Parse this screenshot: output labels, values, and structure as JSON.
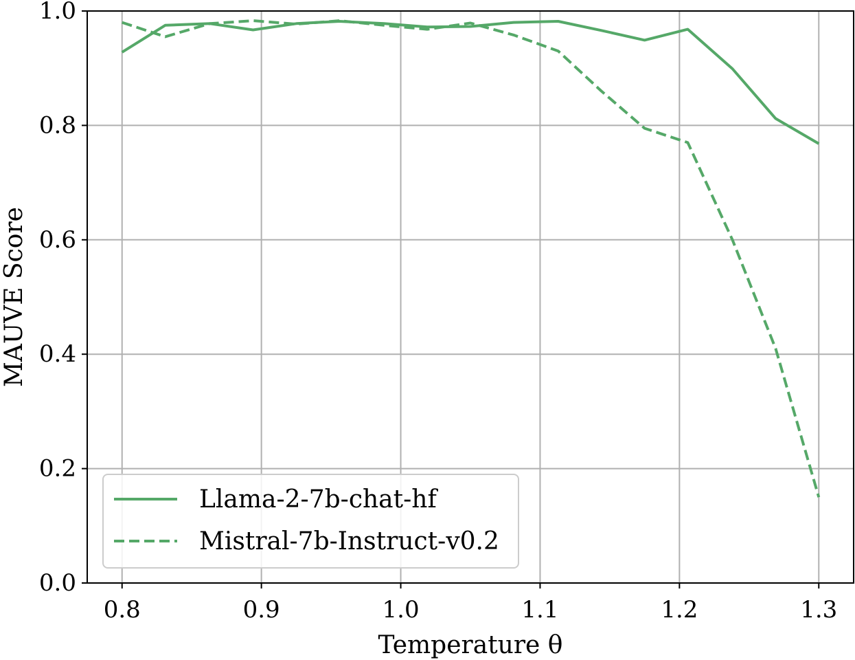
{
  "chart_data": {
    "type": "line",
    "title": "",
    "xlabel": "Temperature θ",
    "ylabel": "MAUVE Score",
    "xlim": [
      0.775,
      1.325
    ],
    "ylim": [
      0.0,
      1.0
    ],
    "xticks": [
      0.8,
      0.9,
      1.0,
      1.1,
      1.2,
      1.3
    ],
    "xtick_labels": [
      "0.8",
      "0.9",
      "1.0",
      "1.1",
      "1.2",
      "1.3"
    ],
    "yticks": [
      0.0,
      0.2,
      0.4,
      0.6,
      0.8,
      1.0
    ],
    "ytick_labels": [
      "0.0",
      "0.2",
      "0.4",
      "0.6",
      "0.8",
      "1.0"
    ],
    "grid": true,
    "legend_position": "bottom-left",
    "series": [
      {
        "name": "Llama-2-7b-chat-hf",
        "style": "solid",
        "color": "#55a868",
        "x": [
          0.8,
          0.831,
          0.863,
          0.894,
          0.925,
          0.956,
          0.988,
          1.019,
          1.05,
          1.081,
          1.113,
          1.144,
          1.175,
          1.206,
          1.238,
          1.269,
          1.3
        ],
        "y": [
          0.928,
          0.975,
          0.978,
          0.967,
          0.978,
          0.982,
          0.978,
          0.972,
          0.973,
          0.98,
          0.982,
          0.966,
          0.949,
          0.968,
          0.899,
          0.812,
          0.768
        ]
      },
      {
        "name": "Mistral-7b-Instruct-v0.2",
        "style": "dashed",
        "color": "#55a868",
        "x": [
          0.8,
          0.831,
          0.863,
          0.894,
          0.925,
          0.956,
          0.988,
          1.019,
          1.05,
          1.081,
          1.113,
          1.144,
          1.175,
          1.206,
          1.238,
          1.269,
          1.3
        ],
        "y": [
          0.98,
          0.955,
          0.978,
          0.983,
          0.977,
          0.983,
          0.975,
          0.968,
          0.979,
          0.958,
          0.93,
          0.86,
          0.795,
          0.77,
          0.6,
          0.41,
          0.15
        ]
      }
    ]
  }
}
